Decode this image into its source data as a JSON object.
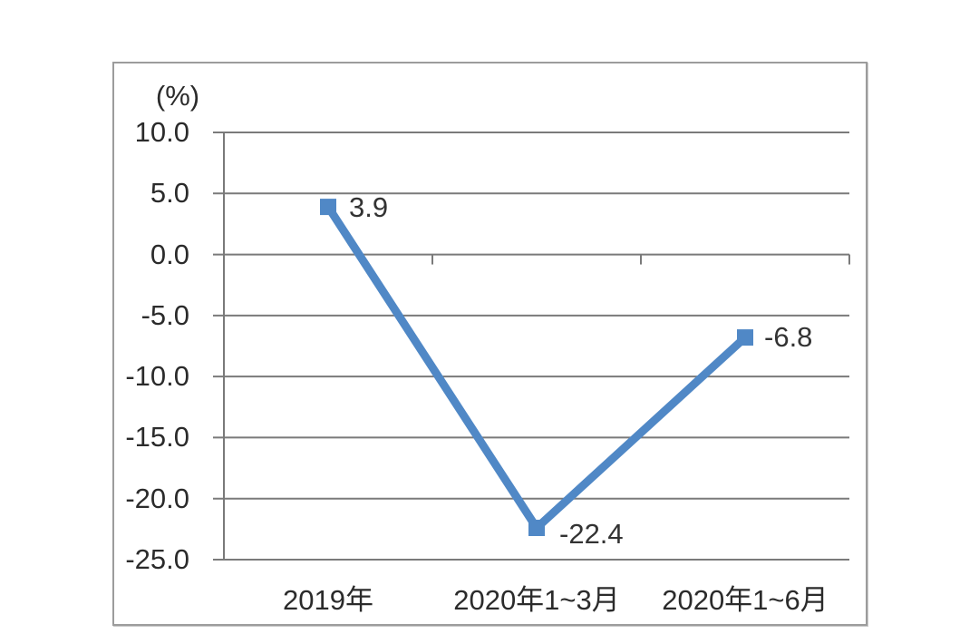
{
  "chart_data": {
    "type": "line",
    "title": "",
    "xlabel": "",
    "ylabel": "(%)",
    "categories": [
      "2019年",
      "2020年1~3月",
      "2020年1~6月"
    ],
    "values": [
      3.9,
      -22.4,
      -6.8
    ],
    "point_labels": [
      "3.9",
      "-22.4",
      "-6.8"
    ],
    "ytick_labels": [
      "10.0",
      "5.0",
      "0.0",
      "-5.0",
      "-10.0",
      "-15.0",
      "-20.0",
      "-25.0"
    ],
    "ytick_values": [
      10,
      5,
      0,
      -5,
      -10,
      -15,
      -20,
      -25
    ],
    "ylim": [
      -25,
      10
    ],
    "grid": true,
    "legend": false,
    "marker": "square",
    "colors": {
      "line": "#5088c6",
      "marker": "#5088c6",
      "grid": "#7a7a7a",
      "axis": "#7a7a7a",
      "frame": "#9c9c9c",
      "text": "#2b2b2b"
    }
  }
}
